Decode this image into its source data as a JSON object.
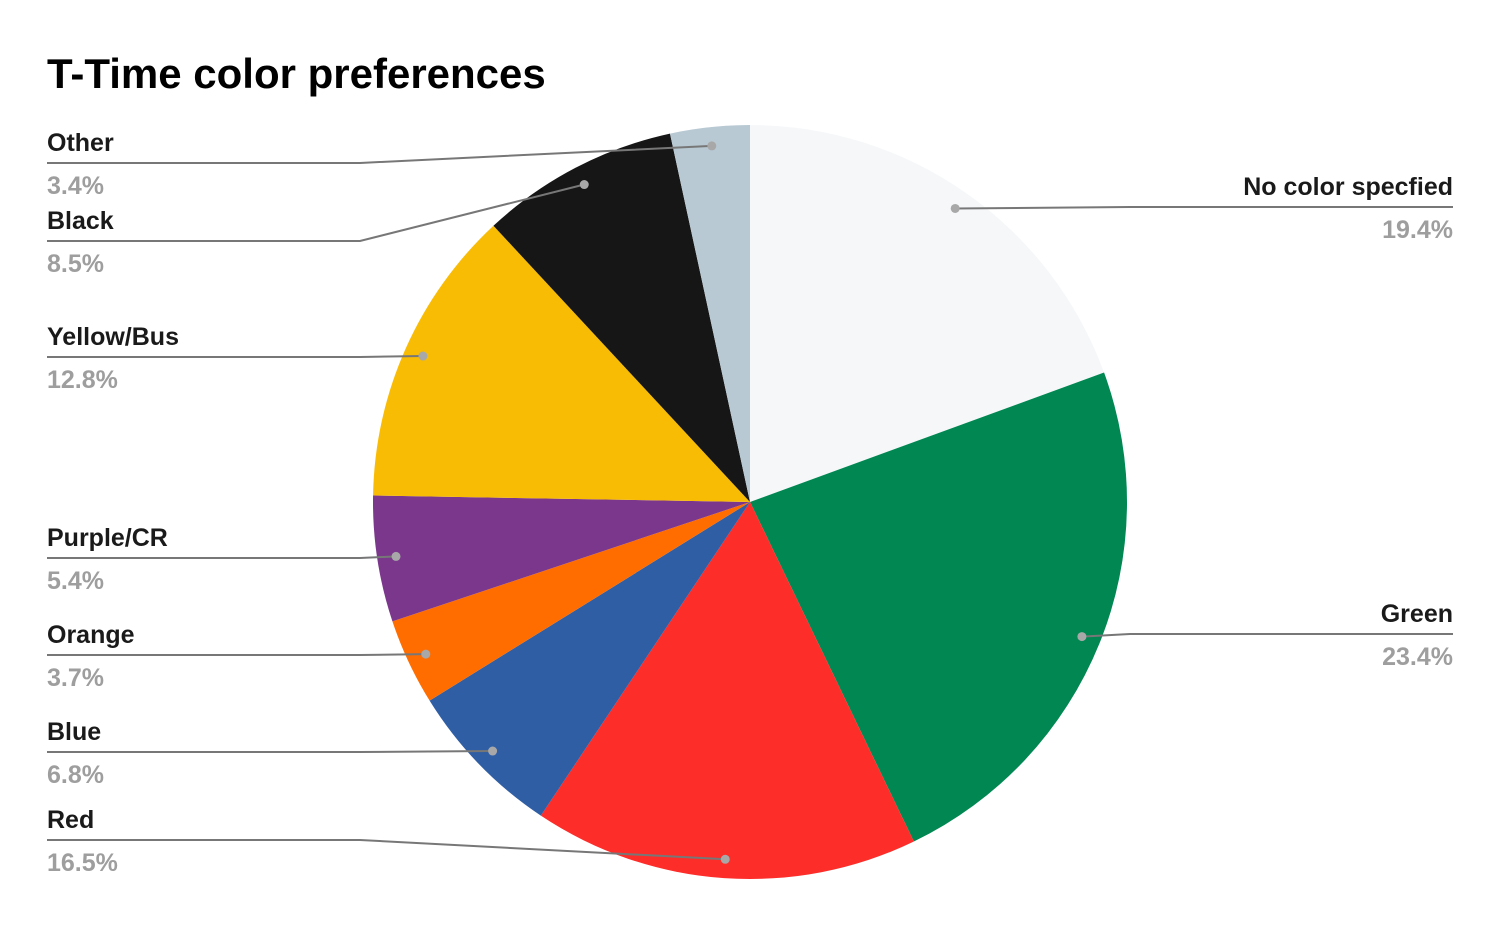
{
  "chart_data": {
    "type": "pie",
    "title": "T-Time color preferences",
    "categories": [
      "No color specfied",
      "Green",
      "Red",
      "Blue",
      "Orange",
      "Purple/CR",
      "Yellow/Bus",
      "Black",
      "Other"
    ],
    "values": [
      19.4,
      23.4,
      16.5,
      6.8,
      3.7,
      5.4,
      12.8,
      8.5,
      3.4
    ],
    "value_labels": [
      "19.4%",
      "23.4%",
      "16.5%",
      "6.8%",
      "3.7%",
      "5.4%",
      "12.8%",
      "8.5%",
      "3.4%"
    ],
    "colors": [
      "#f5f7f9",
      "#018752",
      "#fd2d2a",
      "#2f5ea5",
      "#ff6d00",
      "#7b378b",
      "#f9bc05",
      "#161616",
      "#b8c9d3"
    ]
  }
}
